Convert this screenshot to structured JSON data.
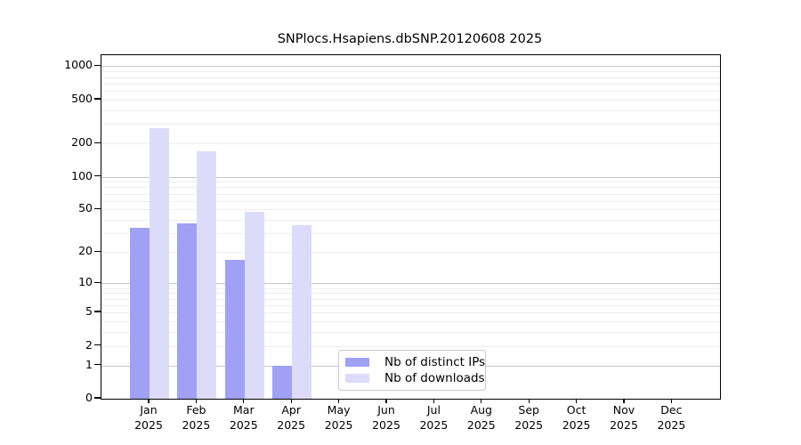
{
  "chart_data": {
    "type": "bar",
    "title": "SNPlocs.Hsapiens.dbSNP.20120608 2025",
    "categories": [
      "Jan",
      "Feb",
      "Mar",
      "Apr",
      "May",
      "Jun",
      "Jul",
      "Aug",
      "Sep",
      "Oct",
      "Nov",
      "Dec"
    ],
    "year_label": "2025",
    "series": [
      {
        "name": "Nb of distinct IPs",
        "color": "#a0a0f4",
        "values": [
          34,
          37,
          17,
          1,
          0,
          0,
          0,
          0,
          0,
          0,
          0,
          0
        ]
      },
      {
        "name": "Nb of downloads",
        "color": "#dcdcfa",
        "values": [
          278,
          169,
          48,
          36,
          0,
          0,
          0,
          0,
          0,
          0,
          0,
          0
        ]
      }
    ],
    "xlabel": "",
    "ylabel": "",
    "yscale": "log10(value+1)",
    "yticks": [
      0,
      1,
      2,
      5,
      10,
      20,
      50,
      100,
      200,
      500,
      1000
    ],
    "ylim": [
      0,
      1260
    ],
    "grid": {
      "major": [
        1,
        10,
        100,
        1000
      ],
      "minor": [
        2,
        3,
        4,
        5,
        6,
        7,
        8,
        9,
        20,
        30,
        40,
        50,
        60,
        70,
        80,
        90,
        200,
        300,
        400,
        500,
        600,
        700,
        800,
        900
      ]
    },
    "legend_position": "lower center",
    "colors": {
      "axis": "#000000",
      "grid_major": "#c6c6c6",
      "grid_minor": "#ededed"
    }
  }
}
